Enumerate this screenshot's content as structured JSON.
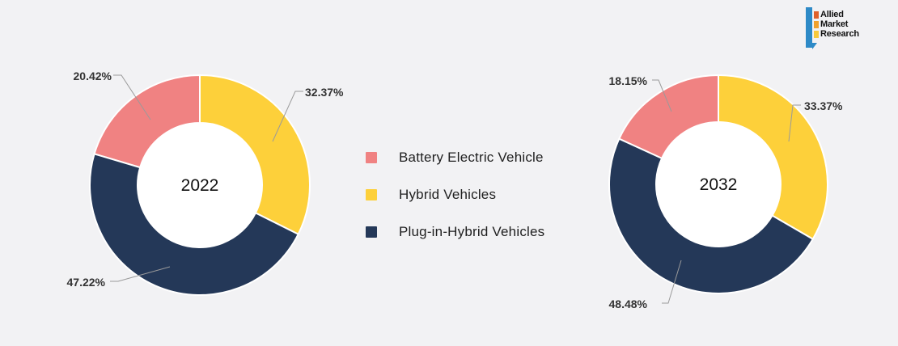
{
  "chart_data": [
    {
      "type": "donut",
      "center_label": "2022",
      "categories": [
        "Battery Electric Vehicle",
        "Hybrid Vehicles",
        "Plug-in-Hybrid Vehicles"
      ],
      "values": [
        20.42,
        32.37,
        47.22
      ],
      "value_labels": [
        "20.42%",
        "32.37%",
        "47.22%"
      ]
    },
    {
      "type": "donut",
      "center_label": "2032",
      "categories": [
        "Battery Electric Vehicle",
        "Hybrid Vehicles",
        "Plug-in-Hybrid Vehicles"
      ],
      "values": [
        18.15,
        33.37,
        48.48
      ],
      "value_labels": [
        "18.15%",
        "33.37%",
        "48.48%"
      ]
    }
  ],
  "legend": {
    "placement": "center",
    "items": [
      {
        "label": "Battery Electric Vehicle",
        "color": "#f08282"
      },
      {
        "label": "Hybrid Vehicles",
        "color": "#fdd03a"
      },
      {
        "label": "Plug-in-Hybrid Vehicles",
        "color": "#243858"
      }
    ]
  },
  "logo": {
    "line1": "Allied",
    "line2": "Market",
    "line3": "Research",
    "colors": [
      "#e0612a",
      "#f2a12c",
      "#f8c93b"
    ]
  }
}
